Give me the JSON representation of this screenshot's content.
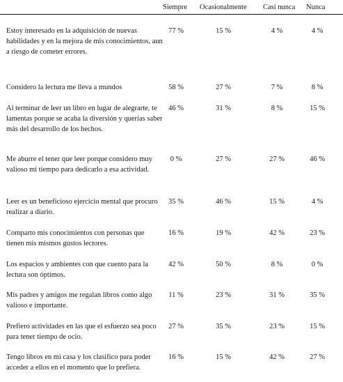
{
  "columns": [
    "Siempre",
    "Ocasionalmente",
    "Casi nunca",
    "Nunca"
  ],
  "rows": [
    {
      "statement": "Estoy interesado en la adquisición de nuevas habilidades y en la mejora de mis conocimientos, aun a riesgo de cometer errores.",
      "siempre": "77 %",
      "ocasionalmente": "15 %",
      "casi_nunca": "4 %",
      "nunca": "4 %"
    },
    {
      "statement": "Considero la lectura me lleva a mundos",
      "siempre": "58 %",
      "ocasionalmente": "27 %",
      "casi_nunca": "7 %",
      "nunca": "8 %"
    },
    {
      "statement": "Al terminar de leer un libro en lugar de alegrarte, te lamentas porque se acaba la diversión y querías saber más del desarrollo de los hechos.",
      "siempre": "46 %",
      "ocasionalmente": "31 %",
      "casi_nunca": "8 %",
      "nunca": "15 %"
    },
    {
      "statement": "Me aburre el tener que leer porque considero muy valioso mi tiempo para dedicarlo a esa actividad.",
      "siempre": "0 %",
      "ocasionalmente": "27 %",
      "casi_nunca": "27 %",
      "nunca": "46 %"
    },
    {
      "statement": "Leer es un beneficioso ejercicio mental que procuro realizar a diario.",
      "siempre": "35 %",
      "ocasionalmente": "46 %",
      "casi_nunca": "15 %",
      "nunca": "4 %"
    },
    {
      "statement": "Comparto mis conocimientos con personas que tienen mis mismos gustos lectores.",
      "siempre": "16 %",
      "ocasionalmente": "19 %",
      "casi_nunca": "42 %",
      "nunca": "23 %"
    },
    {
      "statement": "Los espacios y ambientes con que cuento para la lectura son óptimos.",
      "siempre": "42 %",
      "ocasionalmente": "50 %",
      "casi_nunca": "8 %",
      "nunca": "0 %"
    },
    {
      "statement": "Mis padres y amigos me regalan libros como algo valioso e importante.",
      "siempre": "11 %",
      "ocasionalmente": "23 %",
      "casi_nunca": "31 %",
      "nunca": "35 %"
    },
    {
      "statement": "Prefiero actividades en las que el esfuerzo sea poco para tener tiempo de ocio.",
      "siempre": "27 %",
      "ocasionalmente": "35 %",
      "casi_nunca": "23 %",
      "nunca": "15 %"
    },
    {
      "statement": "Tengo libros en mi casa y los clasifico para poder acceder a ellos en el momento que lo prefiera.",
      "siempre": "16 %",
      "ocasionalmente": "15 %",
      "casi_nunca": "42 %",
      "nunca": "27 %"
    }
  ]
}
